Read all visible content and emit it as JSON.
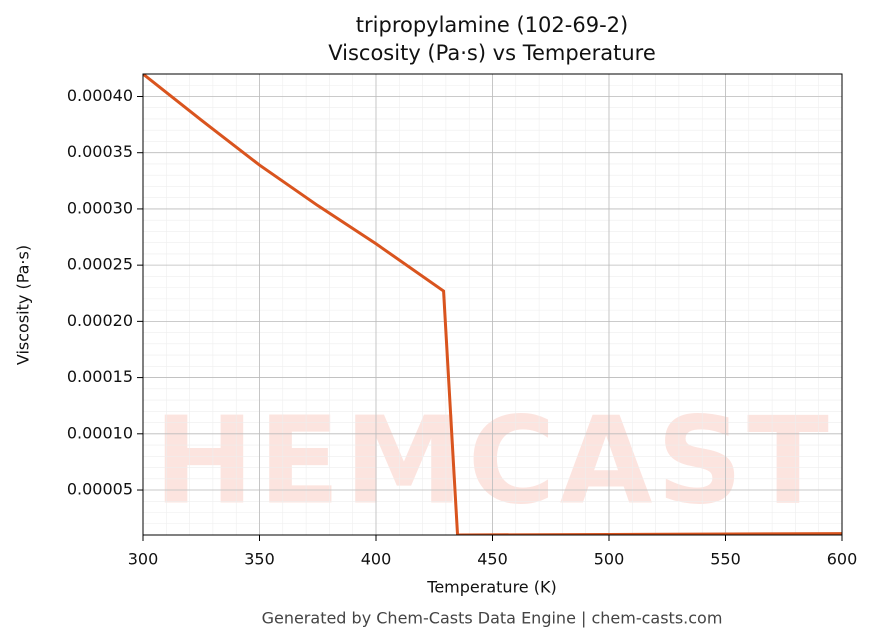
{
  "chart_data": {
    "type": "line",
    "title": "tripropylamine (102-69-2)",
    "subtitle": "Viscosity (Pa·s) vs Temperature",
    "x_label": "Temperature (K)",
    "y_label": "Viscosity (Pa·s)",
    "footer": "Generated by Chem-Casts Data Engine | chem-casts.com",
    "watermark": "CHEMCASTS",
    "x": [
      300,
      325,
      350,
      375,
      400,
      429,
      435,
      500,
      600
    ],
    "series": [
      {
        "name": "Viscosity",
        "color": "#d9541e",
        "values": [
          0.00042,
          0.000379,
          0.000339,
          0.000303,
          0.000269,
          0.000227,
          1e-05,
          1.05e-05,
          1.12e-05
        ]
      }
    ],
    "xlim": [
      300,
      600
    ],
    "xticks": [
      300,
      350,
      400,
      450,
      500,
      550,
      600
    ],
    "ylim": [
      1e-05,
      0.00042
    ],
    "yticks": [
      {
        "value": 5e-05,
        "label": "0.00005"
      },
      {
        "value": 0.0001,
        "label": "0.00010"
      },
      {
        "value": 0.00015,
        "label": "0.00015"
      },
      {
        "value": 0.0002,
        "label": "0.00020"
      },
      {
        "value": 0.00025,
        "label": "0.00025"
      },
      {
        "value": 0.0003,
        "label": "0.00030"
      },
      {
        "value": 0.00035,
        "label": "0.00035"
      },
      {
        "value": 0.0004,
        "label": "0.00040"
      }
    ],
    "grid": true
  }
}
